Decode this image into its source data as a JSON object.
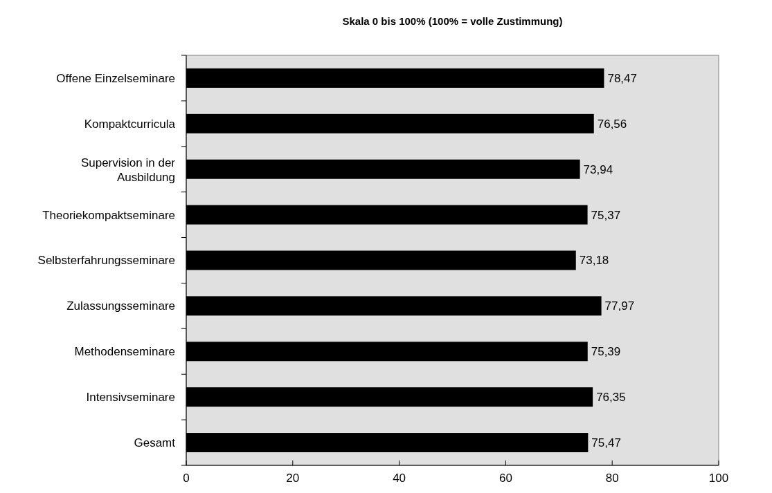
{
  "chart_data": {
    "type": "bar",
    "orientation": "horizontal",
    "title": "Skala 0 bis 100% (100% = volle Zustimmung)",
    "categories": [
      "Offene Einzelseminare",
      "Kompaktcurricula",
      "Supervision in der Ausbildung",
      "Theoriekompaktseminare",
      "Selbsterfahrungsseminare",
      "Zulassungsseminare",
      "Methodenseminare",
      "Intensivseminare",
      "Gesamt"
    ],
    "series": [
      {
        "color": "#000000",
        "values": [
          78.47,
          76.56,
          73.94,
          75.37,
          73.18,
          77.97,
          75.39,
          76.35,
          75.47
        ],
        "value_labels": [
          "78,47",
          "76,56",
          "73,94",
          "75,37",
          "73,18",
          "77,97",
          "75,39",
          "76,35",
          "75,47"
        ]
      }
    ],
    "xlim": [
      0,
      100
    ],
    "xticks": [
      0,
      20,
      40,
      60,
      80,
      100
    ],
    "grid": false
  }
}
